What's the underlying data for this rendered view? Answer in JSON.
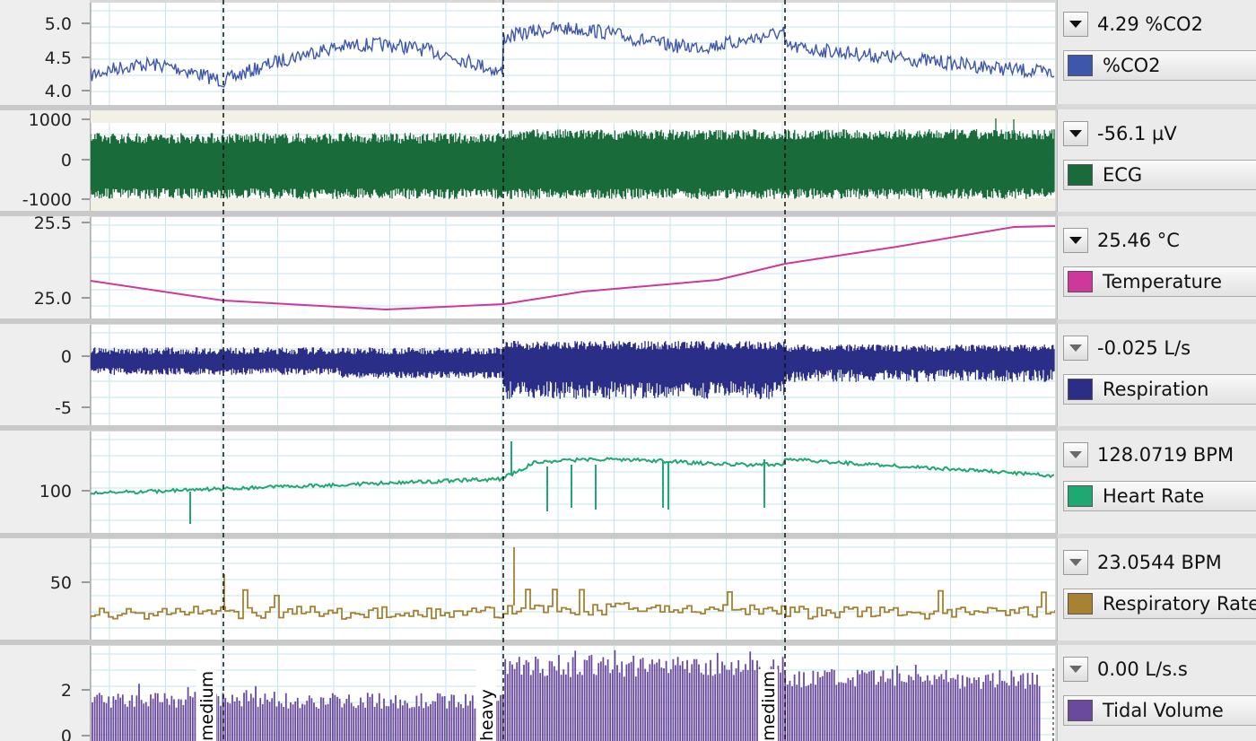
{
  "channels": [
    {
      "id": "co2",
      "name": "%CO2",
      "reading": "4.29 %CO2",
      "color": "#3f57ab",
      "ticks": [
        "5.0",
        "4.5",
        "4.0"
      ],
      "menu_dim": false
    },
    {
      "id": "ecg",
      "name": "ECG",
      "reading": "-56.1 µV",
      "color": "#1a6b3a",
      "ticks": [
        "1000",
        "0",
        "-1000"
      ],
      "menu_dim": false
    },
    {
      "id": "temp",
      "name": "Temperature",
      "reading": "25.46 °C",
      "color": "#d0379b",
      "ticks": [
        "25.5",
        "25.0"
      ],
      "menu_dim": false
    },
    {
      "id": "resp",
      "name": "Respiration",
      "reading": "-0.025 L/s",
      "color": "#2b2e86",
      "ticks": [
        "0",
        "-5"
      ],
      "menu_dim": true
    },
    {
      "id": "hr",
      "name": "Heart Rate",
      "reading": "128.0719 BPM",
      "color": "#1fa871",
      "ticks": [
        "100"
      ],
      "menu_dim": true
    },
    {
      "id": "rr",
      "name": "Respiratory Rate",
      "reading": "23.0544 BPM",
      "color": "#a68232",
      "ticks": [
        "50"
      ],
      "menu_dim": true
    },
    {
      "id": "tv",
      "name": "Tidal Volume",
      "reading": "0.00 L/s.s",
      "color": "#6a4a9c",
      "ticks": [
        "2",
        "0"
      ],
      "menu_dim": true
    }
  ],
  "event_markers": [
    "medium",
    "heavy",
    "medium"
  ]
}
